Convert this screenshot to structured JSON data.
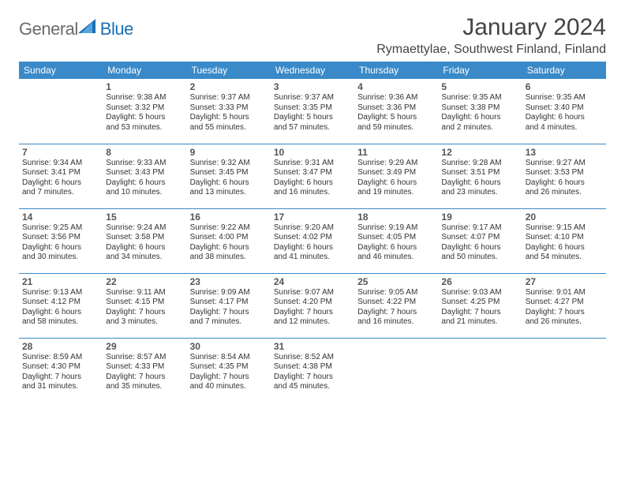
{
  "logo": {
    "word1": "General",
    "word2": "Blue"
  },
  "title": "January 2024",
  "location": "Rymaettylae, Southwest Finland, Finland",
  "weekdays": [
    "Sunday",
    "Monday",
    "Tuesday",
    "Wednesday",
    "Thursday",
    "Friday",
    "Saturday"
  ],
  "header_bg": "#3a8ac9",
  "header_fg": "#ffffff",
  "rule_color": "#3a8ac9",
  "weeks": [
    [
      null,
      {
        "n": "1",
        "sr": "Sunrise: 9:38 AM",
        "ss": "Sunset: 3:32 PM",
        "d1": "Daylight: 5 hours",
        "d2": "and 53 minutes."
      },
      {
        "n": "2",
        "sr": "Sunrise: 9:37 AM",
        "ss": "Sunset: 3:33 PM",
        "d1": "Daylight: 5 hours",
        "d2": "and 55 minutes."
      },
      {
        "n": "3",
        "sr": "Sunrise: 9:37 AM",
        "ss": "Sunset: 3:35 PM",
        "d1": "Daylight: 5 hours",
        "d2": "and 57 minutes."
      },
      {
        "n": "4",
        "sr": "Sunrise: 9:36 AM",
        "ss": "Sunset: 3:36 PM",
        "d1": "Daylight: 5 hours",
        "d2": "and 59 minutes."
      },
      {
        "n": "5",
        "sr": "Sunrise: 9:35 AM",
        "ss": "Sunset: 3:38 PM",
        "d1": "Daylight: 6 hours",
        "d2": "and 2 minutes."
      },
      {
        "n": "6",
        "sr": "Sunrise: 9:35 AM",
        "ss": "Sunset: 3:40 PM",
        "d1": "Daylight: 6 hours",
        "d2": "and 4 minutes."
      }
    ],
    [
      {
        "n": "7",
        "sr": "Sunrise: 9:34 AM",
        "ss": "Sunset: 3:41 PM",
        "d1": "Daylight: 6 hours",
        "d2": "and 7 minutes."
      },
      {
        "n": "8",
        "sr": "Sunrise: 9:33 AM",
        "ss": "Sunset: 3:43 PM",
        "d1": "Daylight: 6 hours",
        "d2": "and 10 minutes."
      },
      {
        "n": "9",
        "sr": "Sunrise: 9:32 AM",
        "ss": "Sunset: 3:45 PM",
        "d1": "Daylight: 6 hours",
        "d2": "and 13 minutes."
      },
      {
        "n": "10",
        "sr": "Sunrise: 9:31 AM",
        "ss": "Sunset: 3:47 PM",
        "d1": "Daylight: 6 hours",
        "d2": "and 16 minutes."
      },
      {
        "n": "11",
        "sr": "Sunrise: 9:29 AM",
        "ss": "Sunset: 3:49 PM",
        "d1": "Daylight: 6 hours",
        "d2": "and 19 minutes."
      },
      {
        "n": "12",
        "sr": "Sunrise: 9:28 AM",
        "ss": "Sunset: 3:51 PM",
        "d1": "Daylight: 6 hours",
        "d2": "and 23 minutes."
      },
      {
        "n": "13",
        "sr": "Sunrise: 9:27 AM",
        "ss": "Sunset: 3:53 PM",
        "d1": "Daylight: 6 hours",
        "d2": "and 26 minutes."
      }
    ],
    [
      {
        "n": "14",
        "sr": "Sunrise: 9:25 AM",
        "ss": "Sunset: 3:56 PM",
        "d1": "Daylight: 6 hours",
        "d2": "and 30 minutes."
      },
      {
        "n": "15",
        "sr": "Sunrise: 9:24 AM",
        "ss": "Sunset: 3:58 PM",
        "d1": "Daylight: 6 hours",
        "d2": "and 34 minutes."
      },
      {
        "n": "16",
        "sr": "Sunrise: 9:22 AM",
        "ss": "Sunset: 4:00 PM",
        "d1": "Daylight: 6 hours",
        "d2": "and 38 minutes."
      },
      {
        "n": "17",
        "sr": "Sunrise: 9:20 AM",
        "ss": "Sunset: 4:02 PM",
        "d1": "Daylight: 6 hours",
        "d2": "and 41 minutes."
      },
      {
        "n": "18",
        "sr": "Sunrise: 9:19 AM",
        "ss": "Sunset: 4:05 PM",
        "d1": "Daylight: 6 hours",
        "d2": "and 46 minutes."
      },
      {
        "n": "19",
        "sr": "Sunrise: 9:17 AM",
        "ss": "Sunset: 4:07 PM",
        "d1": "Daylight: 6 hours",
        "d2": "and 50 minutes."
      },
      {
        "n": "20",
        "sr": "Sunrise: 9:15 AM",
        "ss": "Sunset: 4:10 PM",
        "d1": "Daylight: 6 hours",
        "d2": "and 54 minutes."
      }
    ],
    [
      {
        "n": "21",
        "sr": "Sunrise: 9:13 AM",
        "ss": "Sunset: 4:12 PM",
        "d1": "Daylight: 6 hours",
        "d2": "and 58 minutes."
      },
      {
        "n": "22",
        "sr": "Sunrise: 9:11 AM",
        "ss": "Sunset: 4:15 PM",
        "d1": "Daylight: 7 hours",
        "d2": "and 3 minutes."
      },
      {
        "n": "23",
        "sr": "Sunrise: 9:09 AM",
        "ss": "Sunset: 4:17 PM",
        "d1": "Daylight: 7 hours",
        "d2": "and 7 minutes."
      },
      {
        "n": "24",
        "sr": "Sunrise: 9:07 AM",
        "ss": "Sunset: 4:20 PM",
        "d1": "Daylight: 7 hours",
        "d2": "and 12 minutes."
      },
      {
        "n": "25",
        "sr": "Sunrise: 9:05 AM",
        "ss": "Sunset: 4:22 PM",
        "d1": "Daylight: 7 hours",
        "d2": "and 16 minutes."
      },
      {
        "n": "26",
        "sr": "Sunrise: 9:03 AM",
        "ss": "Sunset: 4:25 PM",
        "d1": "Daylight: 7 hours",
        "d2": "and 21 minutes."
      },
      {
        "n": "27",
        "sr": "Sunrise: 9:01 AM",
        "ss": "Sunset: 4:27 PM",
        "d1": "Daylight: 7 hours",
        "d2": "and 26 minutes."
      }
    ],
    [
      {
        "n": "28",
        "sr": "Sunrise: 8:59 AM",
        "ss": "Sunset: 4:30 PM",
        "d1": "Daylight: 7 hours",
        "d2": "and 31 minutes."
      },
      {
        "n": "29",
        "sr": "Sunrise: 8:57 AM",
        "ss": "Sunset: 4:33 PM",
        "d1": "Daylight: 7 hours",
        "d2": "and 35 minutes."
      },
      {
        "n": "30",
        "sr": "Sunrise: 8:54 AM",
        "ss": "Sunset: 4:35 PM",
        "d1": "Daylight: 7 hours",
        "d2": "and 40 minutes."
      },
      {
        "n": "31",
        "sr": "Sunrise: 8:52 AM",
        "ss": "Sunset: 4:38 PM",
        "d1": "Daylight: 7 hours",
        "d2": "and 45 minutes."
      },
      null,
      null,
      null
    ]
  ]
}
